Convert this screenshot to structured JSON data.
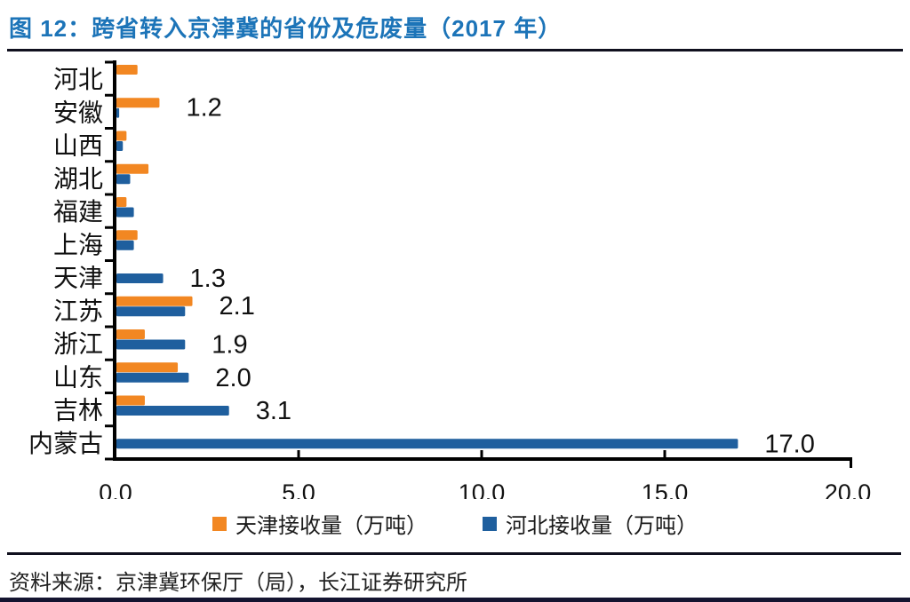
{
  "title": "图 12：跨省转入京津冀的省份及危废量（2017 年）",
  "source": "资料来源：京津冀环保厅（局），长江证券研究所",
  "colors": {
    "title_blue": "#1C74B8",
    "tianjin_orange": "#F28722",
    "hebei_blue": "#1F5F9E",
    "axis_black": "#000000"
  },
  "chart_data": {
    "type": "bar",
    "orientation": "horizontal",
    "title": "跨省转入京津冀的省份及危废量（2017 年）",
    "categories": [
      "河北",
      "安徽",
      "山西",
      "湖北",
      "福建",
      "上海",
      "天津",
      "江苏",
      "浙江",
      "山东",
      "吉林",
      "内蒙古"
    ],
    "series": [
      {
        "name": "天津接收量（万吨）",
        "color": "#F28722",
        "values": [
          0.6,
          1.2,
          0.3,
          0.9,
          0.3,
          0.6,
          0,
          2.1,
          0.8,
          1.7,
          0.8,
          0
        ]
      },
      {
        "name": "河北接收量（万吨）",
        "color": "#1F5F9E",
        "values": [
          0,
          0.1,
          0.2,
          0.4,
          0.5,
          0.5,
          1.3,
          1.9,
          1.9,
          2.0,
          3.1,
          17.0
        ]
      }
    ],
    "data_labels": [
      {
        "category": "安徽",
        "series": 0,
        "text": "1.2"
      },
      {
        "category": "天津",
        "series": 1,
        "text": "1.3"
      },
      {
        "category": "江苏",
        "series": 0,
        "text": "2.1"
      },
      {
        "category": "浙江",
        "series": 1,
        "text": "1.9"
      },
      {
        "category": "山东",
        "series": 1,
        "text": "2.0"
      },
      {
        "category": "吉林",
        "series": 1,
        "text": "3.1"
      },
      {
        "category": "内蒙古",
        "series": 1,
        "text": "17.0"
      }
    ],
    "x_ticks": [
      {
        "value": 0,
        "label": "0.0"
      },
      {
        "value": 5,
        "label": "5.0"
      },
      {
        "value": 10,
        "label": "10.0"
      },
      {
        "value": 15,
        "label": "15.0"
      },
      {
        "value": 20,
        "label": "20.0"
      }
    ],
    "xlim": [
      0,
      20
    ],
    "grid": false,
    "legend_position": "bottom"
  }
}
